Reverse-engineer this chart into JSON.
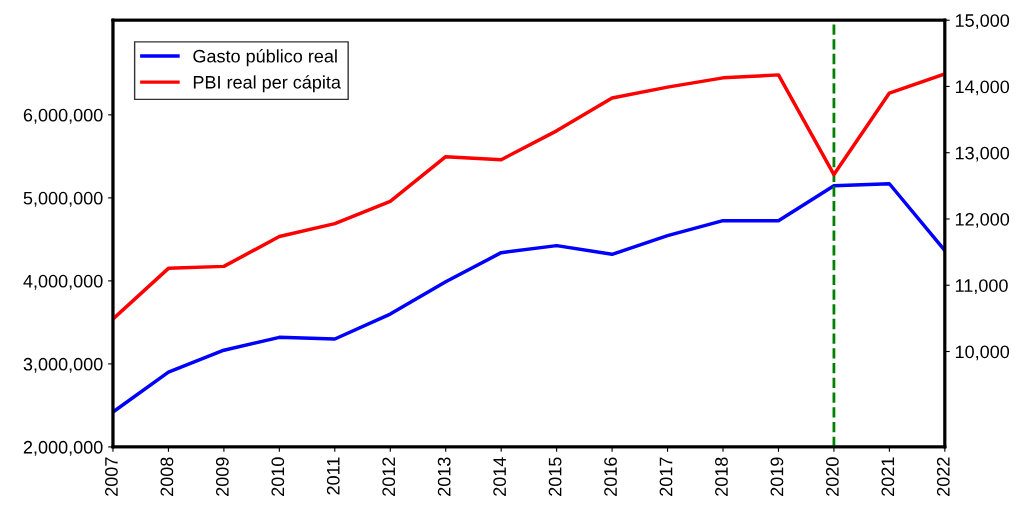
{
  "chart_data": {
    "type": "line",
    "x": [
      2007,
      2008,
      2009,
      2010,
      2011,
      2012,
      2013,
      2014,
      2015,
      2016,
      2017,
      2018,
      2019,
      2020,
      2021,
      2022
    ],
    "series": [
      {
        "name": "Gasto público real",
        "color": "#0000ff",
        "values": [
          2420000,
          2900000,
          3165000,
          3320000,
          3300000,
          3600000,
          3990000,
          4340000,
          4425000,
          4320000,
          4545000,
          4725000,
          4725000,
          5145000,
          5170000,
          4365000
        ]
      },
      {
        "name": "PBI real per cápita",
        "color": "#ff0000",
        "axis": "y2",
        "values": [
          10490,
          11255,
          11285,
          11735,
          11930,
          12265,
          12940,
          12895,
          13330,
          13825,
          13990,
          14130,
          14175,
          12670,
          13900,
          14190
        ]
      }
    ],
    "xlim": [
      2007,
      2022
    ],
    "xticks": [
      2007,
      2008,
      2009,
      2010,
      2011,
      2012,
      2013,
      2014,
      2015,
      2016,
      2017,
      2018,
      2019,
      2020,
      2021,
      2022
    ],
    "ylim": [
      2000000,
      7140000
    ],
    "yticks": [
      {
        "value": 2000000,
        "label": "2,000,000"
      },
      {
        "value": 3000000,
        "label": "3,000,000"
      },
      {
        "value": 4000000,
        "label": "4,000,000"
      },
      {
        "value": 5000000,
        "label": "5,000,000"
      },
      {
        "value": 6000000,
        "label": "6,000,000"
      }
    ],
    "y2lim": [
      8560,
      15000
    ],
    "y2ticks": [
      {
        "value": 10000,
        "label": "10,000"
      },
      {
        "value": 11000,
        "label": "11,000"
      },
      {
        "value": 12000,
        "label": "12,000"
      },
      {
        "value": 13000,
        "label": "13,000"
      },
      {
        "value": 14000,
        "label": "14,000"
      },
      {
        "value": 15000,
        "label": "15,000"
      }
    ],
    "ref_lines": [
      {
        "axis": "x",
        "value": 2020,
        "color": "#008000",
        "line_style": "dashed"
      }
    ],
    "legend": "top left",
    "grid": false,
    "marker": "none",
    "line_style": "solid"
  }
}
